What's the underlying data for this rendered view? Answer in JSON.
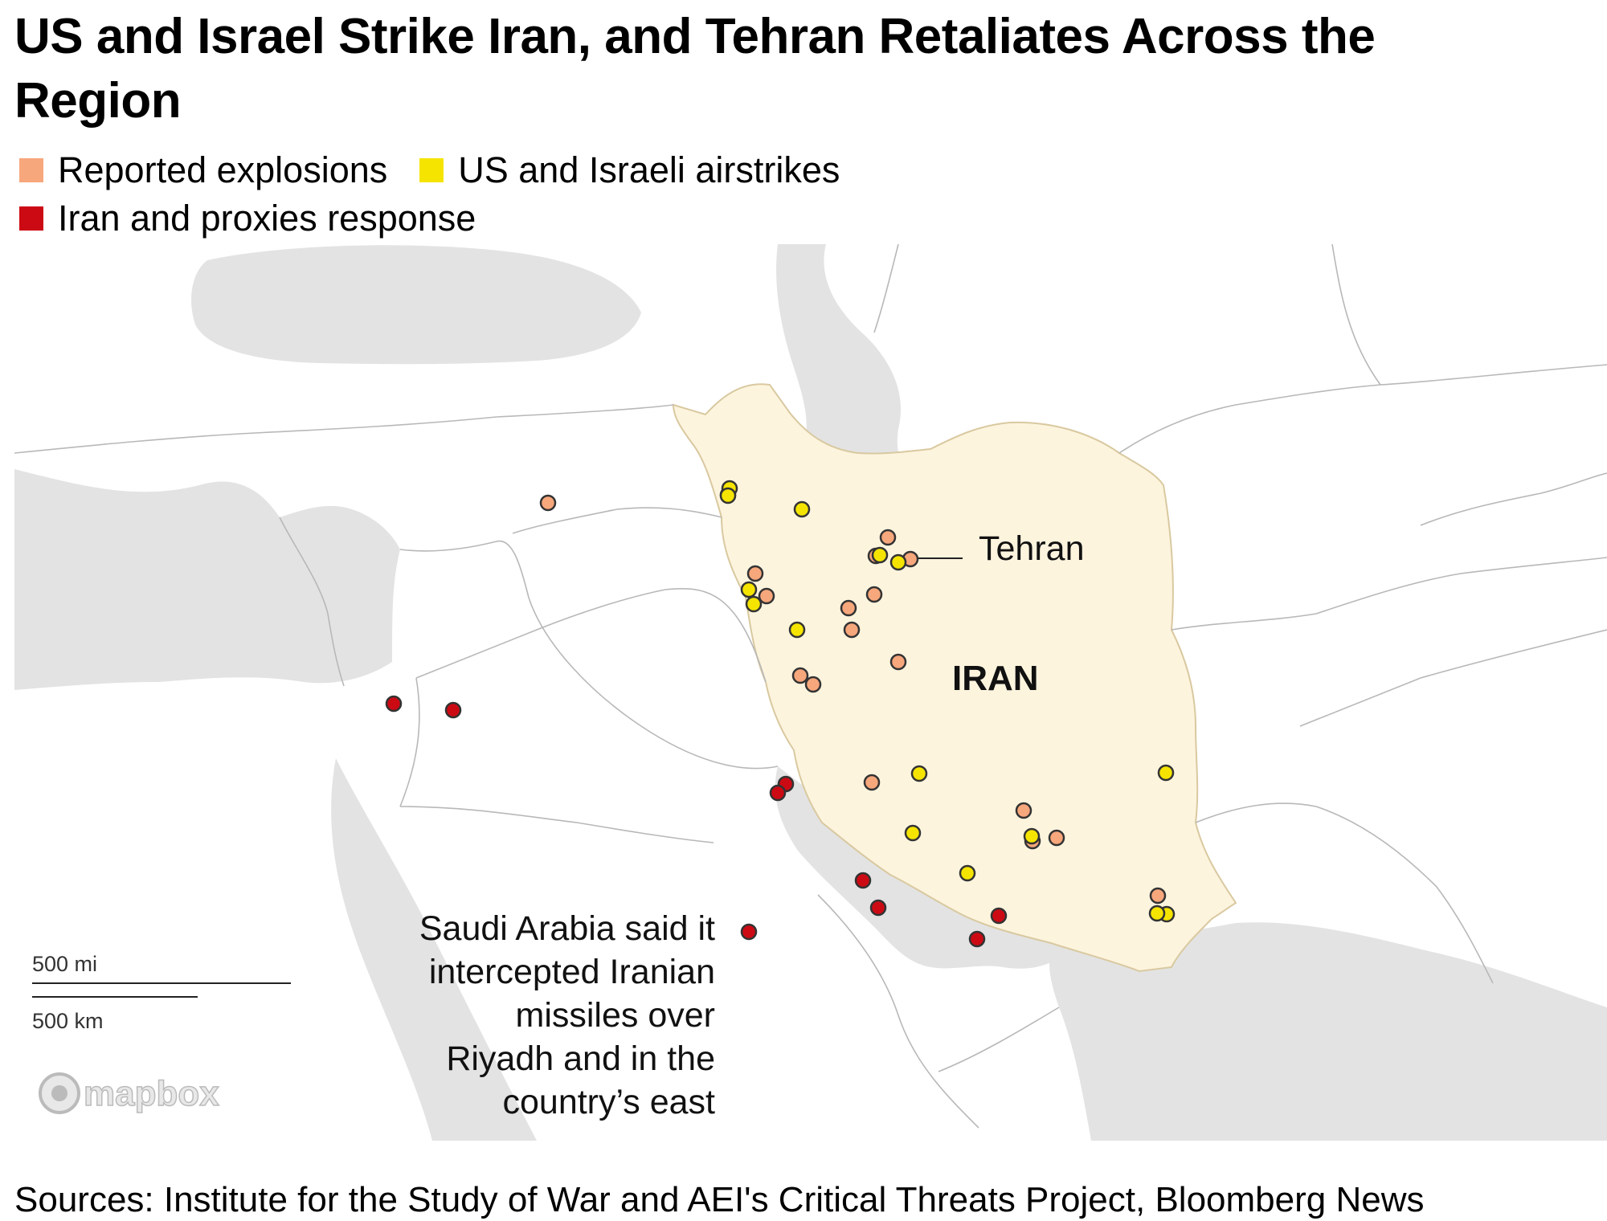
{
  "title": "US and Israel Strike Iran, and Tehran Retaliates Across the Region",
  "legend": [
    {
      "label": "Reported explosions",
      "color": "#f7a77c"
    },
    {
      "label": "US and Israeli airstrikes",
      "color": "#f5e400"
    },
    {
      "label": "Iran and proxies response",
      "color": "#cc0a14"
    }
  ],
  "colors": {
    "land": "#ffffff",
    "water": "#e3e3e3",
    "iran": "#fdf4de",
    "border": "#b8b8b8",
    "explosion": "#f7a77c",
    "airstrike": "#f5e400",
    "response": "#cc0a14",
    "marker_stroke": "#333333"
  },
  "map": {
    "country_label": "IRAN",
    "city_label": "Tehran",
    "annotation": [
      "Saudi Arabia said it",
      "intercepted Iranian",
      "missiles over",
      "Riyadh and in the",
      "country’s east"
    ],
    "scale_mi": "500 mi",
    "scale_km": "500 km",
    "attribution": "mapbox"
  },
  "source": "Sources: Institute for the Study of War and AEI's Critical Threats Project, Bloomberg News"
}
